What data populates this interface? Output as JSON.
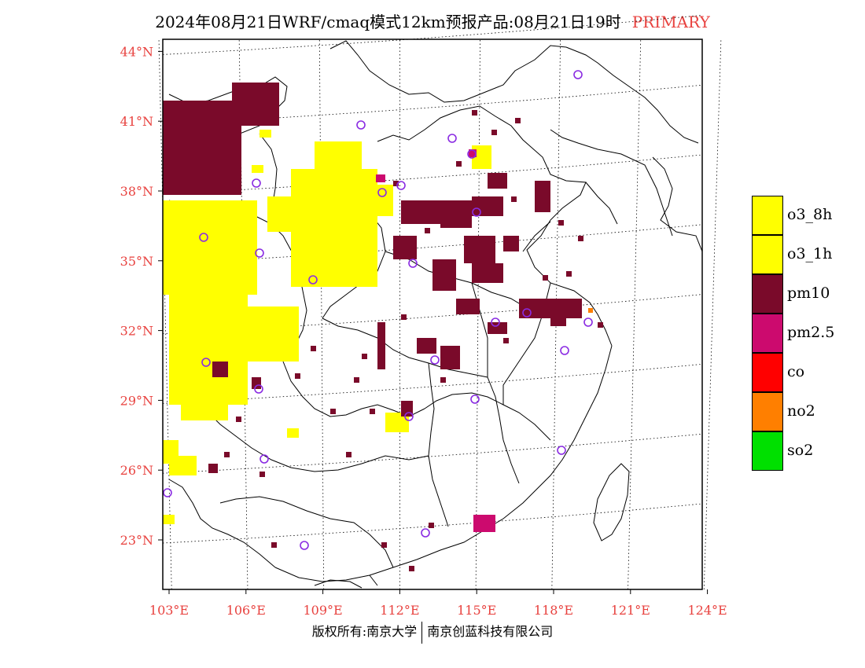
{
  "title": {
    "text": "2024年08月21日WRF/cmaq模式12km预报产品:08月21日19时",
    "tag": "PRIMARY"
  },
  "axes": {
    "lat_labels": [
      "44°N",
      "41°N",
      "38°N",
      "35°N",
      "32°N",
      "29°N",
      "26°N",
      "23°N"
    ],
    "lon_labels": [
      "103°E",
      "106°E",
      "109°E",
      "112°E",
      "115°E",
      "118°E",
      "121°E",
      "124°E"
    ],
    "lat_values": [
      44,
      41,
      38,
      35,
      32,
      29,
      26,
      23
    ],
    "lon_values": [
      103,
      106,
      109,
      112,
      115,
      118,
      121,
      124
    ]
  },
  "legend": {
    "items": [
      {
        "label": "o3_8h",
        "color": "#ffff00"
      },
      {
        "label": "o3_1h",
        "color": "#ffff00"
      },
      {
        "label": "pm10",
        "color": "#7a0a2a"
      },
      {
        "label": "pm2.5",
        "color": "#cc0a6e"
      },
      {
        "label": "co",
        "color": "#ff0000"
      },
      {
        "label": "no2",
        "color": "#ff7f00"
      },
      {
        "label": "so2",
        "color": "#00e000"
      }
    ]
  },
  "footer": {
    "left": "版权所有:南京大学",
    "right": "南京创蓝科技有限公司"
  },
  "colors": {
    "tick": "#e8423f",
    "station": "#8a2be2",
    "o3": "#ffff00",
    "pm10": "#7a0a2a",
    "pm25": "#cc0a6e"
  }
}
